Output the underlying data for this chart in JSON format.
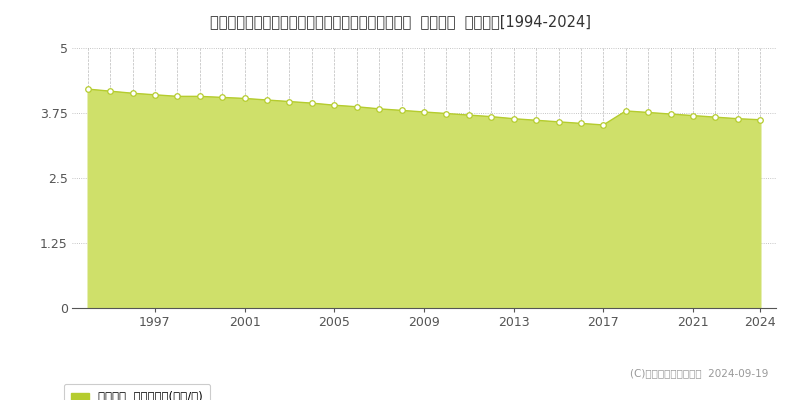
{
  "title": "栃木県芳賀郡芳賀町大字稲毛田字屋敷添１４３０番  公示地価  地価推移[1994-2024]",
  "years": [
    1994,
    1995,
    1996,
    1997,
    1998,
    1999,
    2000,
    2001,
    2002,
    2003,
    2004,
    2005,
    2006,
    2007,
    2008,
    2009,
    2010,
    2011,
    2012,
    2013,
    2014,
    2015,
    2016,
    2017,
    2018,
    2019,
    2020,
    2021,
    2022,
    2023,
    2024
  ],
  "values": [
    4.21,
    4.17,
    4.13,
    4.1,
    4.07,
    4.07,
    4.05,
    4.03,
    4.0,
    3.97,
    3.94,
    3.9,
    3.87,
    3.83,
    3.8,
    3.77,
    3.74,
    3.71,
    3.68,
    3.64,
    3.61,
    3.58,
    3.55,
    3.52,
    3.79,
    3.76,
    3.73,
    3.7,
    3.67,
    3.64,
    3.62
  ],
  "line_color": "#b5cc2e",
  "fill_color": "#cfe06a",
  "fill_alpha": 1.0,
  "marker_facecolor": "#ffffff",
  "marker_edgecolor": "#b5cc2e",
  "ylim": [
    0,
    5
  ],
  "yticks": [
    0,
    1.25,
    2.5,
    3.75,
    5
  ],
  "ytick_labels": [
    "0",
    "1.25",
    "2.5",
    "3.75",
    "5"
  ],
  "xtick_labels": [
    "1997",
    "2001",
    "2005",
    "2009",
    "2013",
    "2017",
    "2021",
    "2024"
  ],
  "xtick_positions": [
    1997,
    2001,
    2005,
    2009,
    2013,
    2017,
    2021,
    2024
  ],
  "legend_label": "公示地価  平均坪単価(万円/坪)",
  "legend_color": "#b5cc2e",
  "copyright_text": "(C)土地価格ドットコム  2024-09-19",
  "bg_color": "#ffffff",
  "vgrid_color": "#aaaaaa",
  "hgrid_color": "#aaaaaa",
  "title_fontsize": 10.5,
  "axis_fontsize": 9
}
